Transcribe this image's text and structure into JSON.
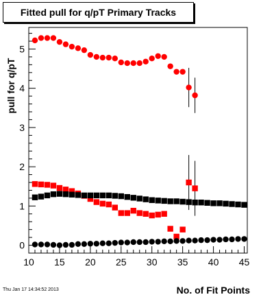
{
  "title": "Fitted pull for q/pT Primary Tracks",
  "footer_timestamp": "Thu Jan 17 14:34:52 2013",
  "chart_data": {
    "type": "scatter",
    "xlabel": "No. of Fit Points",
    "ylabel": "pull for q/pT",
    "xlim": [
      10,
      45.5
    ],
    "ylim": [
      -0.2,
      5.55
    ],
    "x_ticks": [
      10,
      15,
      20,
      25,
      30,
      35,
      40,
      45
    ],
    "y_ticks": [
      0,
      1,
      2,
      3,
      4,
      5
    ],
    "grid": false,
    "series": [
      {
        "marker": "circle",
        "color": "#ff0000",
        "x": [
          11,
          12,
          13,
          14,
          15,
          16,
          17,
          18,
          19,
          20,
          21,
          22,
          23,
          24,
          25,
          26,
          27,
          28,
          29,
          30,
          31,
          32,
          33,
          34,
          35,
          36,
          37
        ],
        "y": [
          5.22,
          5.28,
          5.28,
          5.28,
          5.18,
          5.12,
          5.06,
          5.02,
          4.97,
          4.85,
          4.8,
          4.78,
          4.78,
          4.76,
          4.66,
          4.64,
          4.64,
          4.64,
          4.68,
          4.76,
          4.82,
          4.8,
          4.56,
          4.42,
          4.42,
          4.02,
          3.82
        ],
        "err": [
          0,
          0,
          0,
          0,
          0,
          0,
          0,
          0,
          0,
          0,
          0,
          0,
          0,
          0,
          0,
          0,
          0,
          0,
          0,
          0,
          0,
          0,
          0,
          0,
          0,
          0.5,
          0.45
        ]
      },
      {
        "marker": "square",
        "color": "#ff0000",
        "x": [
          11,
          12,
          13,
          14,
          15,
          16,
          17,
          18,
          19,
          20,
          21,
          22,
          23,
          24,
          25,
          26,
          27,
          28,
          29,
          30,
          31,
          32,
          33,
          34,
          35,
          36,
          37
        ],
        "y": [
          1.56,
          1.55,
          1.54,
          1.52,
          1.46,
          1.42,
          1.38,
          1.32,
          1.26,
          1.18,
          1.1,
          1.06,
          1.04,
          0.96,
          0.82,
          0.82,
          0.88,
          0.82,
          0.8,
          0.76,
          0.78,
          0.8,
          0.42,
          0.22,
          0.4,
          1.6,
          1.45
        ],
        "err": [
          0,
          0,
          0,
          0,
          0,
          0,
          0,
          0,
          0,
          0,
          0,
          0,
          0,
          0,
          0,
          0,
          0,
          0,
          0,
          0,
          0,
          0,
          0,
          0,
          0,
          0.7,
          0.7
        ]
      },
      {
        "marker": "square",
        "color": "#000000",
        "x": [
          11,
          12,
          13,
          14,
          15,
          16,
          17,
          18,
          19,
          20,
          21,
          22,
          23,
          24,
          25,
          26,
          27,
          28,
          29,
          30,
          31,
          32,
          33,
          34,
          35,
          36,
          37,
          38,
          39,
          40,
          41,
          42,
          43,
          44,
          45
        ],
        "y": [
          1.22,
          1.24,
          1.27,
          1.3,
          1.31,
          1.3,
          1.29,
          1.28,
          1.27,
          1.27,
          1.27,
          1.27,
          1.27,
          1.26,
          1.25,
          1.23,
          1.21,
          1.19,
          1.17,
          1.15,
          1.14,
          1.13,
          1.12,
          1.12,
          1.11,
          1.1,
          1.09,
          1.09,
          1.08,
          1.07,
          1.07,
          1.06,
          1.05,
          1.04,
          1.03
        ],
        "err": []
      },
      {
        "marker": "circle",
        "color": "#000000",
        "x": [
          11,
          12,
          13,
          14,
          15,
          16,
          17,
          18,
          19,
          20,
          21,
          22,
          23,
          24,
          25,
          26,
          27,
          28,
          29,
          30,
          31,
          32,
          33,
          34,
          35,
          36,
          37,
          38,
          39,
          40,
          41,
          42,
          43,
          44,
          45
        ],
        "y": [
          0.02,
          0.02,
          0.02,
          0.01,
          0.0,
          0.01,
          0.01,
          0.03,
          0.03,
          0.04,
          0.04,
          0.05,
          0.05,
          0.06,
          0.07,
          0.07,
          0.08,
          0.08,
          0.08,
          0.09,
          0.09,
          0.1,
          0.1,
          0.11,
          0.11,
          0.12,
          0.12,
          0.13,
          0.13,
          0.14,
          0.14,
          0.15,
          0.15,
          0.16,
          0.16
        ],
        "err": []
      }
    ]
  }
}
